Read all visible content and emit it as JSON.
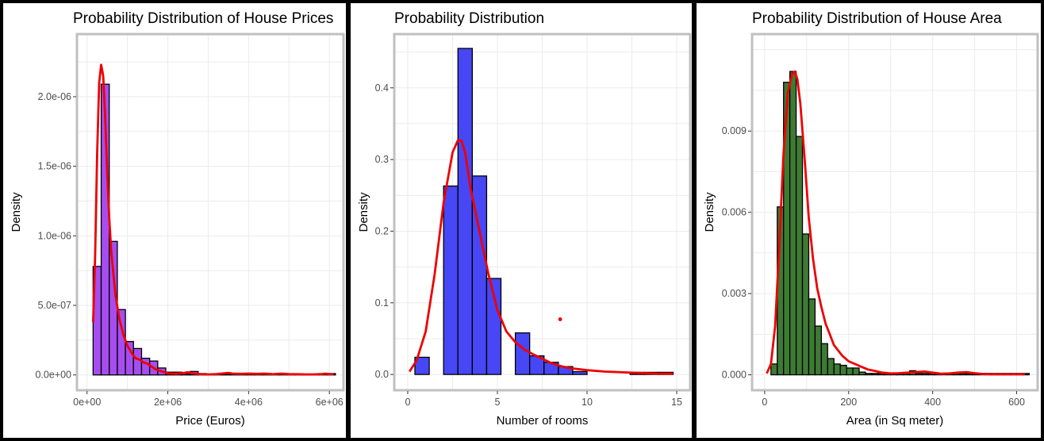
{
  "colors": {
    "price_fill": "#a64df0",
    "rooms_fill": "#4747f5",
    "area_fill": "#3f7a35",
    "density_line": "#ee0000",
    "grid": "#ebebeb",
    "frame": "#c0c0c0"
  },
  "chart_data": [
    {
      "type": "bar",
      "title": "Probability Distribution of House Prices",
      "xlabel": "Price (Euros)",
      "ylabel": "Density",
      "xlim": [
        -250000,
        6350000
      ],
      "ylim": [
        -1.1e-07,
        2.45e-06
      ],
      "xticks": [
        0,
        2000000,
        4000000,
        6000000
      ],
      "xtick_labels": [
        "0e+00",
        "2e+06",
        "4e+06",
        "6e+06"
      ],
      "yticks": [
        0,
        5e-07,
        1e-06,
        1.5e-06,
        2e-06
      ],
      "ytick_labels": [
        "0.0e+00",
        "5.0e-07",
        "1.0e-06",
        "1.5e-06",
        "2.0e-06"
      ],
      "grid": true,
      "bin_start": 150000,
      "bin_width": 200000,
      "values": [
        7.8e-07,
        2.09e-06,
        9.6e-07,
        4.7e-07,
        2.4e-07,
        1.9e-07,
        1.2e-07,
        1e-07,
        5e-08,
        2e-08,
        2e-08,
        1e-08,
        2.5e-08,
        1e-08,
        5e-09,
        5e-09,
        5e-09,
        5e-09,
        5e-09,
        1e-08,
        5e-09,
        1e-08,
        5e-09,
        5e-09,
        5e-09,
        5e-09,
        5e-09,
        5e-09,
        5e-09,
        1e-08
      ],
      "density_curve": {
        "x": [
          150000,
          200000,
          250000,
          300000,
          350000,
          400000,
          450000,
          500000,
          550000,
          600000,
          700000,
          800000,
          900000,
          1000000,
          1100000,
          1200000,
          1300000,
          1400000,
          1500000,
          1600000,
          1700000,
          1800000,
          1900000,
          2000000,
          2200000,
          2400000,
          2500000,
          2600000,
          2800000,
          3000000,
          3200000,
          3400000,
          3500000,
          3600000,
          3800000,
          4000000,
          4200000,
          4400000,
          4600000,
          4800000,
          5000000,
          5200000,
          5400000,
          5600000,
          5800000,
          5900000,
          6000000,
          6100000
        ],
        "y": [
          3.8e-07,
          8.5e-07,
          1.6e-06,
          2.1e-06,
          2.23e-06,
          2.15e-06,
          1.85e-06,
          1.45e-06,
          1.13e-06,
          8.8e-07,
          5.8e-07,
          4e-07,
          2.9e-07,
          2.1e-07,
          1.6e-07,
          1.2e-07,
          1.1e-07,
          9e-08,
          8e-08,
          6e-08,
          4e-08,
          3e-08,
          2e-08,
          1.2e-08,
          8e-09,
          1.5e-08,
          2e-08,
          1.2e-08,
          5e-09,
          4e-09,
          6e-09,
          1.2e-08,
          1.5e-08,
          1e-08,
          8e-09,
          1e-08,
          8e-09,
          1e-08,
          5e-09,
          1e-08,
          6e-09,
          5e-09,
          4e-09,
          4e-09,
          6e-09,
          1e-08,
          6e-09,
          4e-09
        ]
      }
    },
    {
      "type": "bar",
      "title": "Probability Distribution",
      "xlabel": "Number of rooms",
      "ylabel": "Density",
      "xlim": [
        -0.75,
        15.75
      ],
      "ylim": [
        -0.022,
        0.475
      ],
      "xticks": [
        0,
        5,
        10,
        15
      ],
      "xtick_labels": [
        "0",
        "5",
        "10",
        "15"
      ],
      "yticks": [
        0,
        0.1,
        0.2,
        0.3,
        0.4
      ],
      "ytick_labels": [
        "0.0",
        "0.1",
        "0.2",
        "0.3",
        "0.4"
      ],
      "grid": true,
      "bin_start": 0.4,
      "bin_width": 0.8,
      "values": [
        0.024,
        0,
        0.263,
        0.455,
        0.277,
        0.134,
        0,
        0.058,
        0.026,
        0.017,
        0.011,
        0.004,
        0,
        0,
        0,
        0.003,
        0.003,
        0.003
      ],
      "annotation_point": {
        "x": 8.5,
        "y": 0.077
      },
      "density_curve": {
        "x": [
          0.1,
          0.5,
          1.0,
          1.5,
          2.0,
          2.5,
          2.8,
          3.0,
          3.2,
          3.5,
          4.0,
          4.5,
          5.0,
          5.5,
          6.0,
          6.5,
          7.0,
          7.5,
          8.0,
          8.5,
          9.0,
          10.0,
          11.0,
          12.0,
          13.0,
          14.0,
          14.8
        ],
        "y": [
          0.004,
          0.02,
          0.06,
          0.14,
          0.24,
          0.31,
          0.327,
          0.326,
          0.31,
          0.26,
          0.2,
          0.14,
          0.09,
          0.06,
          0.045,
          0.035,
          0.028,
          0.022,
          0.016,
          0.012,
          0.009,
          0.006,
          0.004,
          0.003,
          0.002,
          0.001,
          0.001
        ]
      }
    },
    {
      "type": "bar",
      "title": "Probability Distribution of House Area",
      "xlabel": "Area (in Sq meter)",
      "ylabel": "Density",
      "xlim": [
        -30,
        650
      ],
      "ylim": [
        -0.00057,
        0.01258
      ],
      "xticks": [
        0,
        200,
        400,
        600
      ],
      "xtick_labels": [
        "0",
        "200",
        "400",
        "600"
      ],
      "yticks": [
        0,
        0.003,
        0.006,
        0.009
      ],
      "ytick_labels": [
        "0.000",
        "0.003",
        "0.006",
        "0.009"
      ],
      "grid": true,
      "bin_start": 15,
      "bin_width": 15,
      "values": [
        0.0004,
        0.0062,
        0.0108,
        0.0112,
        0.0088,
        0.0052,
        0.0028,
        0.0018,
        0.00115,
        0.0006,
        0.0004,
        0.00035,
        0.00025,
        0.00025,
        0.0001,
        5e-05,
        5e-05,
        5e-05,
        5e-05,
        5e-05,
        5e-05,
        5e-05,
        0.00015,
        5e-05,
        5e-05,
        5e-05,
        5e-05,
        5e-05,
        5e-05,
        5e-05,
        5e-05,
        5e-05,
        5e-05,
        5e-05,
        5e-05,
        5e-05,
        5e-05,
        5e-05,
        5e-05,
        5e-05,
        5e-05
      ],
      "density_curve": {
        "x": [
          5,
          15,
          25,
          35,
          45,
          55,
          65,
          72,
          78,
          85,
          95,
          105,
          115,
          125,
          135,
          145,
          155,
          165,
          175,
          185,
          200,
          215,
          230,
          245,
          260,
          280,
          300,
          320,
          340,
          360,
          380,
          400,
          420,
          440,
          460,
          480,
          500,
          520,
          540,
          560,
          580,
          600,
          620
        ],
        "y": [
          5e-05,
          0.0004,
          0.0018,
          0.0048,
          0.0082,
          0.0104,
          0.0111,
          0.0112,
          0.0109,
          0.01,
          0.008,
          0.0058,
          0.0043,
          0.0032,
          0.0025,
          0.0019,
          0.0015,
          0.0011,
          0.0009,
          0.0007,
          0.0005,
          0.0004,
          0.0003,
          0.0002,
          0.00015,
          8e-05,
          5e-05,
          6e-05,
          8e-05,
          0.0001,
          0.00012,
          8e-05,
          4e-05,
          5e-05,
          8e-05,
          0.0001,
          6e-05,
          3e-05,
          2e-05,
          2e-05,
          2e-05,
          2e-05,
          2e-05
        ]
      }
    }
  ]
}
